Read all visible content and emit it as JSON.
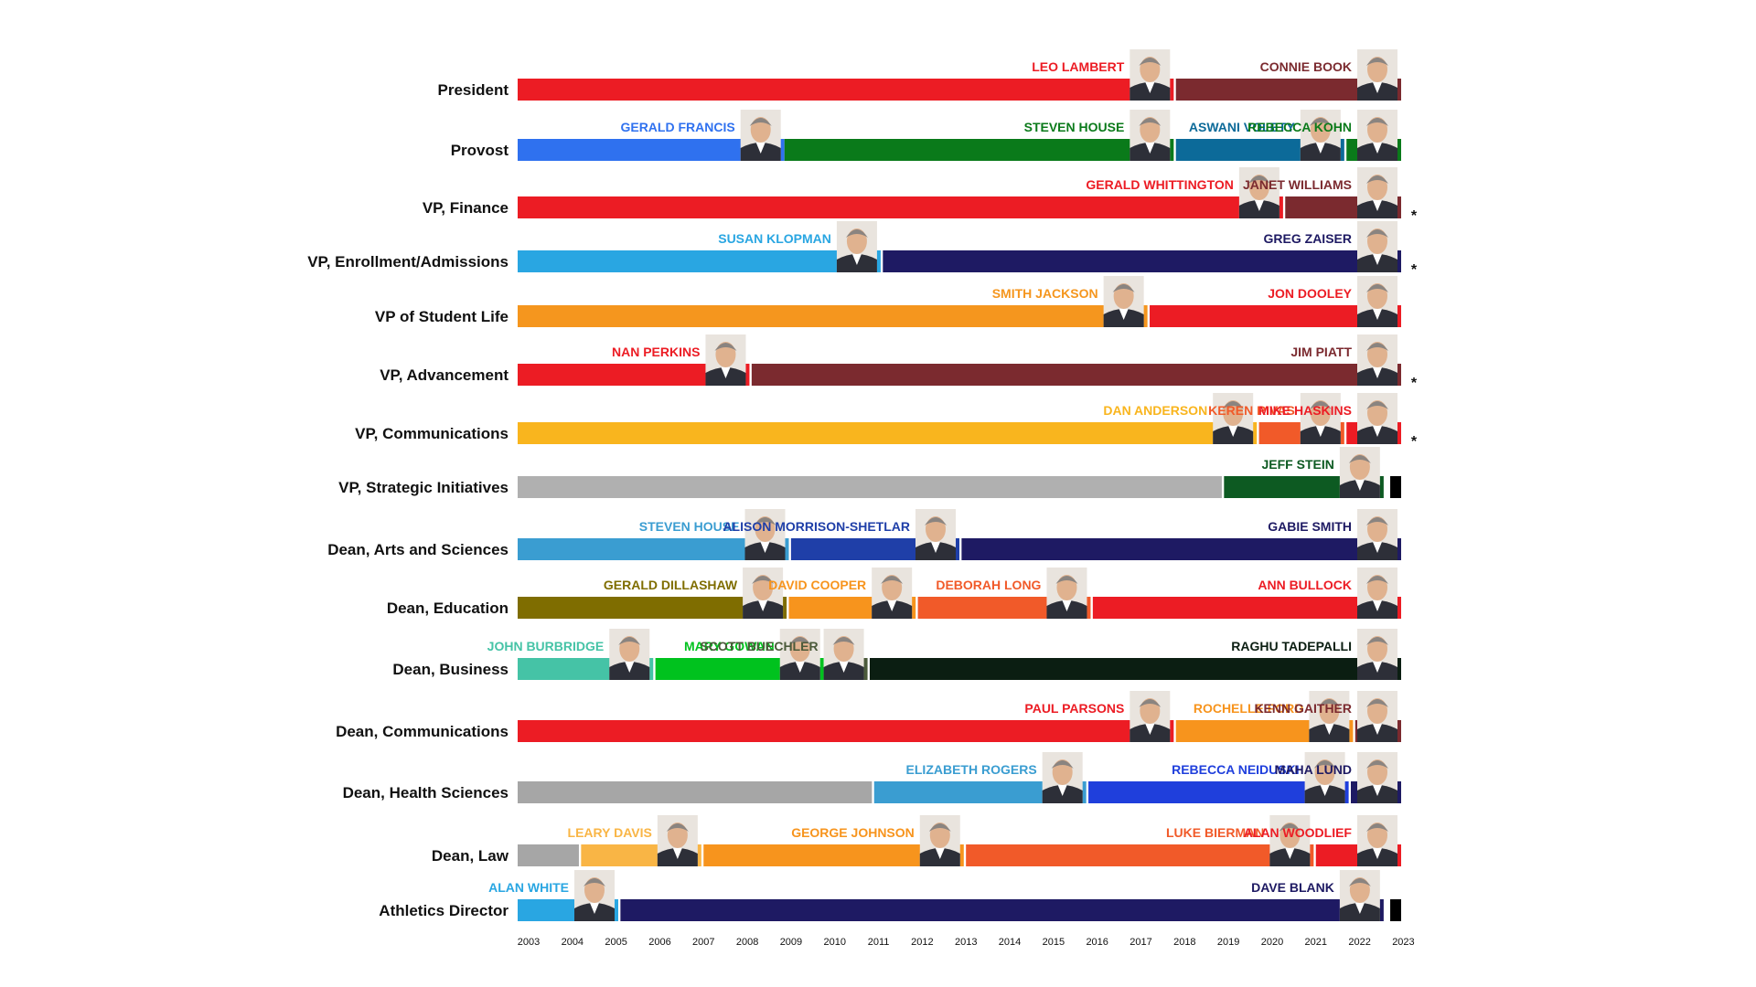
{
  "chart_data": {
    "type": "bar",
    "x_range": [
      2003,
      2023.2
    ],
    "years": [
      "2003",
      "2004",
      "2005",
      "2006",
      "2007",
      "2008",
      "2009",
      "2010",
      "2011",
      "2012",
      "2013",
      "2014",
      "2015",
      "2016",
      "2017",
      "2018",
      "2019",
      "2020",
      "2021",
      "2022",
      "2023"
    ],
    "rows": [
      {
        "label": "President",
        "asterisk": false,
        "segments": [
          {
            "name": "LEO LAMBERT",
            "start": 2003.0,
            "end": 2018.0,
            "color": "#ec1c24",
            "photo": true
          },
          {
            "name": "CONNIE BOOK",
            "start": 2018.05,
            "end": 2023.2,
            "color": "#7b2a2f",
            "photo": true
          }
        ]
      },
      {
        "label": "Provost",
        "asterisk": false,
        "segments": [
          {
            "name": "GERALD FRANCIS",
            "start": 2003.0,
            "end": 2009.1,
            "color": "#2f71ef",
            "photo": true
          },
          {
            "name": "STEVEN HOUSE",
            "start": 2009.1,
            "end": 2018.0,
            "color": "#0a7a1a",
            "photo": true
          },
          {
            "name": "ASWANI VOLETY",
            "start": 2018.05,
            "end": 2021.9,
            "color": "#0c6a99",
            "photo": true
          },
          {
            "name": "REBECCA KOHN",
            "start": 2021.95,
            "end": 2023.2,
            "color": "#0a7a1a",
            "photo": true
          }
        ]
      },
      {
        "label": "VP, Finance",
        "asterisk": true,
        "segments": [
          {
            "name": "GERALD WHITTINGTON",
            "start": 2003.0,
            "end": 2020.5,
            "color": "#ec1c24",
            "photo": true
          },
          {
            "name": "JANET WILLIAMS",
            "start": 2020.55,
            "end": 2023.2,
            "color": "#7b2a2f",
            "photo": true
          }
        ]
      },
      {
        "label": "VP, Enrollment/Admissions",
        "asterisk": true,
        "segments": [
          {
            "name": "SUSAN KLOPMAN",
            "start": 2003.0,
            "end": 2011.3,
            "color": "#29a6e2",
            "photo": true
          },
          {
            "name": "GREG ZAISER",
            "start": 2011.35,
            "end": 2023.2,
            "color": "#1e1a63",
            "photo": true
          }
        ]
      },
      {
        "label": "VP of Student Life",
        "asterisk": false,
        "segments": [
          {
            "name": "SMITH JACKSON",
            "start": 2003.0,
            "end": 2017.4,
            "color": "#f5961e",
            "photo": true
          },
          {
            "name": "JON DOOLEY",
            "start": 2017.45,
            "end": 2023.2,
            "color": "#ec1c24",
            "photo": true
          }
        ]
      },
      {
        "label": "VP, Advancement",
        "asterisk": true,
        "segments": [
          {
            "name": "NAN PERKINS",
            "start": 2003.0,
            "end": 2008.3,
            "color": "#ec1c24",
            "photo": true
          },
          {
            "name": "JIM PIATT",
            "start": 2008.35,
            "end": 2023.2,
            "color": "#7b2a2f",
            "photo": true
          }
        ]
      },
      {
        "label": "VP, Communications",
        "asterisk": true,
        "segments": [
          {
            "name": "DAN ANDERSON",
            "start": 2003.0,
            "end": 2019.9,
            "color": "#f9b51e",
            "photo": true
          },
          {
            "name": "KEREN RIVAS",
            "start": 2019.95,
            "end": 2021.9,
            "color": "#f15a29",
            "photo": true
          },
          {
            "name": "MIKE HASKINS",
            "start": 2021.95,
            "end": 2023.2,
            "color": "#ec1c24",
            "photo": true
          }
        ]
      },
      {
        "label": "VP, Strategic Initiatives",
        "asterisk": false,
        "segments": [
          {
            "name": "",
            "start": 2003.0,
            "end": 2019.1,
            "color": "#b0b0b0",
            "photo": false
          },
          {
            "name": "JEFF STEIN",
            "start": 2019.15,
            "end": 2022.8,
            "color": "#0d5a22",
            "photo": true
          },
          {
            "name": "",
            "start": 2022.95,
            "end": 2023.2,
            "color": "#000000",
            "photo": false
          }
        ]
      },
      {
        "label": "Dean, Arts and Sciences",
        "asterisk": false,
        "segments": [
          {
            "name": "STEVEN HOUSE",
            "start": 2003.0,
            "end": 2009.2,
            "color": "#3a9dd1",
            "photo": true
          },
          {
            "name": "ALISON MORRISON-SHETLAR",
            "start": 2009.25,
            "end": 2013.1,
            "color": "#1f3fa8",
            "photo": true
          },
          {
            "name": "GABIE SMITH",
            "start": 2013.15,
            "end": 2023.2,
            "color": "#1e1a63",
            "photo": true
          }
        ]
      },
      {
        "label": "Dean, Education",
        "asterisk": false,
        "segments": [
          {
            "name": "GERALD DILLASHAW",
            "start": 2003.0,
            "end": 2009.15,
            "color": "#7f6d00",
            "photo": true
          },
          {
            "name": "DAVID COOPER",
            "start": 2009.2,
            "end": 2012.1,
            "color": "#f7941d",
            "photo": true
          },
          {
            "name": "DEBORAH LONG",
            "start": 2012.15,
            "end": 2016.1,
            "color": "#f15a29",
            "photo": true
          },
          {
            "name": "ANN BULLOCK",
            "start": 2016.15,
            "end": 2023.2,
            "color": "#ec1c24",
            "photo": true
          }
        ]
      },
      {
        "label": "Dean, Business",
        "asterisk": false,
        "segments": [
          {
            "name": "JOHN BURBRIDGE",
            "start": 2003.0,
            "end": 2006.1,
            "color": "#45c3a6",
            "photo": true
          },
          {
            "name": "MARY GOWAN",
            "start": 2006.15,
            "end": 2010.0,
            "color": "#00c21e",
            "photo": true
          },
          {
            "name": "SCOTT BUECHLER",
            "start": 2010.05,
            "end": 2011.0,
            "color": "#4b5a3a",
            "photo": true
          },
          {
            "name": "RAGHU TADEPALLI",
            "start": 2011.05,
            "end": 2023.2,
            "color": "#0b1e12",
            "photo": true
          }
        ]
      },
      {
        "label": "Dean, Communications",
        "asterisk": false,
        "segments": [
          {
            "name": "PAUL PARSONS",
            "start": 2003.0,
            "end": 2018.0,
            "color": "#ec1c24",
            "photo": true
          },
          {
            "name": "ROCHELLE FORD",
            "start": 2018.05,
            "end": 2022.1,
            "color": "#f7941d",
            "photo": true
          },
          {
            "name": "KENN GAITHER",
            "start": 2022.15,
            "end": 2023.2,
            "color": "#7b2a2f",
            "photo": true
          }
        ]
      },
      {
        "label": "Dean, Health Sciences",
        "asterisk": false,
        "segments": [
          {
            "name": "",
            "start": 2003.0,
            "end": 2011.1,
            "color": "#a6a6a6",
            "photo": false
          },
          {
            "name": "ELIZABETH ROGERS",
            "start": 2011.15,
            "end": 2016.0,
            "color": "#3a9dd1",
            "photo": true
          },
          {
            "name": "REBECCA NEIDUSKI",
            "start": 2016.05,
            "end": 2022.0,
            "color": "#1f3fdc",
            "photo": true
          },
          {
            "name": "MAHA LUND",
            "start": 2022.05,
            "end": 2023.2,
            "color": "#1e1a63",
            "photo": true
          }
        ]
      },
      {
        "label": "Dean, Law",
        "asterisk": false,
        "segments": [
          {
            "name": "",
            "start": 2003.0,
            "end": 2004.4,
            "color": "#a6a6a6",
            "photo": false
          },
          {
            "name": "LEARY DAVIS",
            "start": 2004.45,
            "end": 2007.2,
            "color": "#f9b545",
            "photo": true
          },
          {
            "name": "GEORGE JOHNSON",
            "start": 2007.25,
            "end": 2013.2,
            "color": "#f7941d",
            "photo": true
          },
          {
            "name": "LUKE BIERMAN",
            "start": 2013.25,
            "end": 2021.2,
            "color": "#f15a29",
            "photo": true
          },
          {
            "name": "ALAN WOODLIEF",
            "start": 2021.25,
            "end": 2023.2,
            "color": "#ec1c24",
            "photo": true
          }
        ]
      },
      {
        "label": "Athletics Director",
        "asterisk": false,
        "segments": [
          {
            "name": "ALAN WHITE",
            "start": 2003.0,
            "end": 2005.3,
            "color": "#29a6e2",
            "photo": true
          },
          {
            "name": "DAVE BLANK",
            "start": 2005.35,
            "end": 2022.8,
            "color": "#1e1a63",
            "photo": true
          },
          {
            "name": "",
            "start": 2022.95,
            "end": 2023.2,
            "color": "#000000",
            "photo": false
          }
        ]
      }
    ]
  }
}
